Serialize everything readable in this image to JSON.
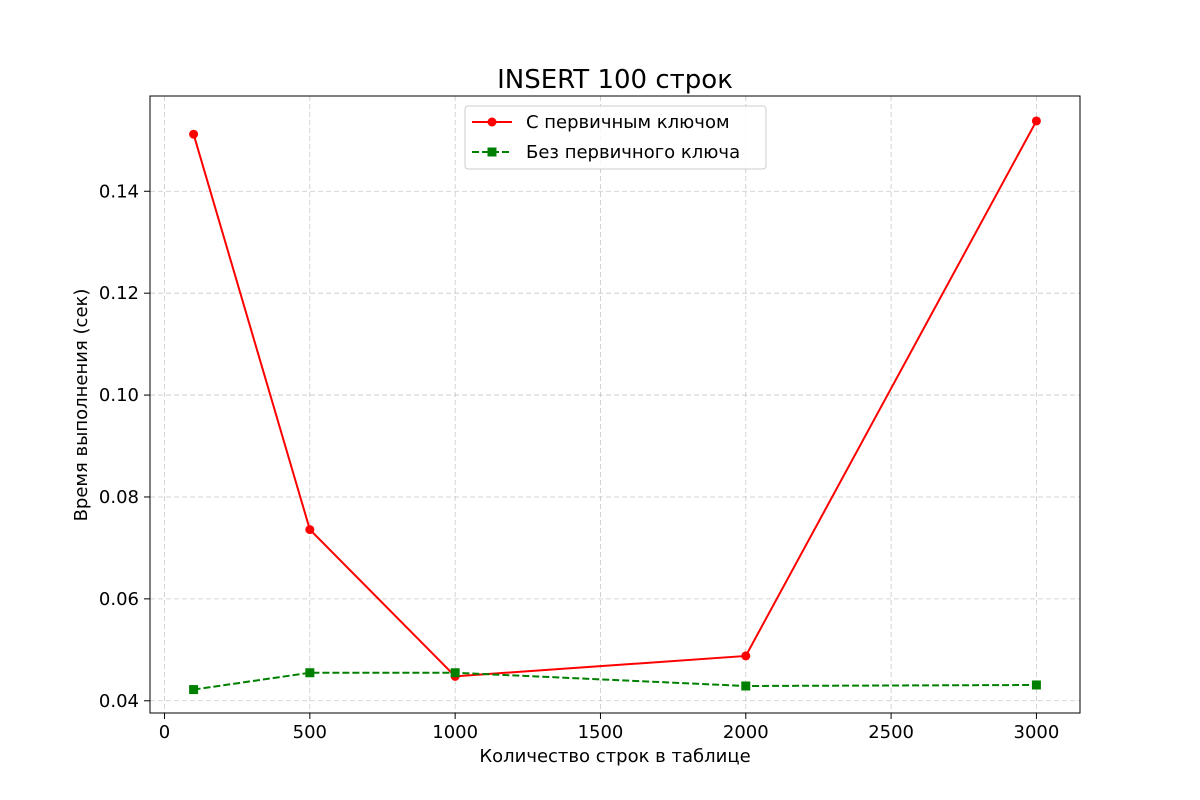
{
  "chart_data": {
    "type": "line",
    "title": "INSERT 100 строк",
    "xlabel": "Количество строк в таблице",
    "ylabel": "Время выполнения (сек)",
    "x": [
      100,
      500,
      1000,
      2000,
      3000
    ],
    "series": [
      {
        "name": "С первичным ключом",
        "values": [
          0.1512,
          0.0736,
          0.0448,
          0.0488,
          0.1538
        ],
        "color": "#ff0000",
        "marker": "circle",
        "linestyle": "solid"
      },
      {
        "name": "Без первичного ключа",
        "values": [
          0.0422,
          0.0455,
          0.0455,
          0.0429,
          0.0431
        ],
        "color": "#008000",
        "marker": "square",
        "linestyle": "dashed"
      }
    ],
    "xlim": [
      -50,
      3150
    ],
    "ylim": [
      0.0376,
      0.1587
    ],
    "xticks": [
      "0",
      "500",
      "1000",
      "1500",
      "2000",
      "2500",
      "3000"
    ],
    "yticks": [
      "0.04",
      "0.06",
      "0.08",
      "0.10",
      "0.12",
      "0.14"
    ],
    "grid": true,
    "legend_position": "upper center"
  }
}
